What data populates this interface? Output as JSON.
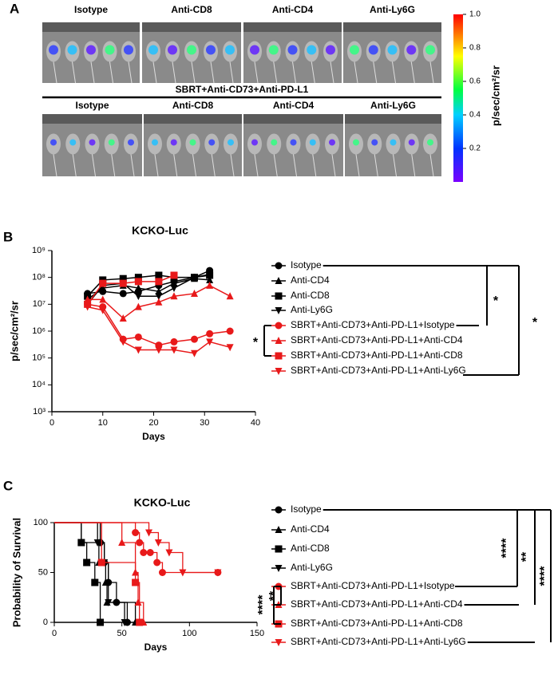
{
  "panels": [
    "A",
    "B",
    "C"
  ],
  "panel_a": {
    "top_labels": [
      "Isotype",
      "Anti-CD8",
      "Anti-CD4",
      "Anti-Ly6G"
    ],
    "treatment_label": "SBRT+Anti-CD73+Anti-PD-L1",
    "bottom_labels": [
      "Isotype",
      "Anti-CD8",
      "Anti-CD4",
      "Anti-Ly6G"
    ],
    "colorbar": {
      "label": "p/sec/cm²/sr",
      "lim": [
        0,
        1
      ],
      "ticks": [
        {
          "value": 1,
          "label": "1.0"
        },
        0.8,
        0.6,
        0.4,
        0.2
      ]
    }
  },
  "chart_data": [
    {
      "type": "line",
      "title": "KCKO-Luc",
      "x_label": "Days",
      "y_label": "p/sec/cm²/sr",
      "log_y": true,
      "x": [
        7,
        10,
        14,
        17,
        21,
        24,
        28,
        31,
        35
      ],
      "xlim": [
        0,
        40
      ],
      "xticks": [
        0,
        10,
        20,
        30,
        40
      ],
      "ylim": [
        1000,
        1000000000
      ],
      "yticks": [
        {
          "value": 1000,
          "label": "10³"
        },
        {
          "value": 10000,
          "label": "10⁴"
        },
        {
          "value": 100000,
          "label": "10⁵"
        },
        {
          "value": 1000000,
          "label": "10⁶"
        },
        {
          "value": 10000000,
          "label": "10⁷"
        },
        {
          "value": 100000000,
          "label": "10⁸"
        },
        {
          "value": 1000000000,
          "label": "10⁹"
        }
      ],
      "series": [
        {
          "name": "Isotype",
          "color": "#000000",
          "marker": "circle",
          "values": [
            25000000,
            30000000,
            25000000,
            30000000,
            50000000,
            70000000,
            100000000,
            180000000,
            null
          ]
        },
        {
          "name": "Anti-CD4",
          "color": "#000000",
          "marker": "triangle-up",
          "values": [
            15000000,
            40000000,
            50000000,
            40000000,
            30000000,
            60000000,
            90000000,
            80000000,
            null
          ]
        },
        {
          "name": "Anti-CD8",
          "color": "#000000",
          "marker": "square",
          "values": [
            20000000,
            80000000,
            90000000,
            100000000,
            120000000,
            100000000,
            100000000,
            120000000,
            null
          ]
        },
        {
          "name": "Anti-Ly6G",
          "color": "#000000",
          "marker": "triangle-down",
          "values": [
            10000000,
            50000000,
            60000000,
            20000000,
            20000000,
            40000000,
            100000000,
            130000000,
            null
          ]
        },
        {
          "name": "SBRT+Anti-CD73+Anti-PD-L1+Isotype",
          "color": "#e8191a",
          "marker": "circle",
          "values": [
            10000000,
            8000000,
            500000,
            600000,
            300000,
            400000,
            500000,
            800000,
            1000000
          ]
        },
        {
          "name": "SBRT+Anti-CD73+Anti-PD-L1+Anti-CD4",
          "color": "#e8191a",
          "marker": "triangle-up",
          "values": [
            15000000,
            15000000,
            3000000,
            8000000,
            12000000,
            20000000,
            25000000,
            50000000,
            20000000
          ]
        },
        {
          "name": "SBRT+Anti-CD73+Anti-PD-L1+Anti-CD8",
          "color": "#e8191a",
          "marker": "square",
          "values": [
            10000000,
            60000000,
            60000000,
            70000000,
            70000000,
            120000000,
            null,
            null,
            null
          ]
        },
        {
          "name": "SBRT+Anti-CD73+Anti-PD-L1+Anti-Ly6G",
          "color": "#e8191a",
          "marker": "triangle-down",
          "values": [
            8000000,
            6000000,
            400000,
            200000,
            200000,
            200000,
            150000,
            400000,
            250000
          ]
        }
      ],
      "annotations": [
        "*",
        "*",
        "*"
      ]
    },
    {
      "type": "survival",
      "title": "KCKO-Luc",
      "x_label": "Days",
      "y_label": "Probability of Survival",
      "xlim": [
        0,
        150
      ],
      "xticks": [
        0,
        50,
        100,
        150
      ],
      "ylim": [
        0,
        100
      ],
      "yticks": [
        0,
        50,
        100
      ],
      "series": [
        {
          "name": "Isotype",
          "color": "#000000",
          "marker": "circle",
          "x": [
            0,
            34,
            37,
            40,
            46,
            54
          ],
          "values": [
            100,
            80,
            60,
            40,
            20,
            0
          ]
        },
        {
          "name": "Anti-CD4",
          "color": "#000000",
          "marker": "triangle-up",
          "x": [
            0,
            20,
            33,
            38,
            39,
            60
          ],
          "values": [
            100,
            80,
            60,
            40,
            20,
            0
          ]
        },
        {
          "name": "Anti-CD8",
          "color": "#000000",
          "marker": "square",
          "x": [
            0,
            20,
            24,
            30,
            34
          ],
          "values": [
            100,
            80,
            60,
            40,
            0
          ]
        },
        {
          "name": "Anti-Ly6G",
          "color": "#000000",
          "marker": "triangle-down",
          "x": [
            0,
            32,
            37,
            40,
            52
          ],
          "values": [
            100,
            80,
            60,
            20,
            0
          ]
        },
        {
          "name": "SBRT+Anti-CD73+Anti-PD-L1+Isotype",
          "color": "#e8191a",
          "marker": "circle",
          "x": [
            0,
            60,
            63,
            66,
            71,
            76,
            80,
            121
          ],
          "values": [
            100,
            90,
            80,
            70,
            70,
            60,
            50,
            50
          ]
        },
        {
          "name": "SBRT+Anti-CD73+Anti-PD-L1+Anti-CD4",
          "color": "#e8191a",
          "marker": "triangle-up",
          "x": [
            0,
            50,
            60,
            62,
            66
          ],
          "values": [
            100,
            80,
            50,
            20,
            0
          ]
        },
        {
          "name": "SBRT+Anti-CD73+Anti-PD-L1+Anti-CD8",
          "color": "#e8191a",
          "marker": "square",
          "x": [
            0,
            35,
            60,
            63
          ],
          "values": [
            100,
            60,
            40,
            0
          ]
        },
        {
          "name": "SBRT+Anti-CD73+Anti-PD-L1+Anti-Ly6G",
          "color": "#e8191a",
          "marker": "triangle-down",
          "x": [
            0,
            70,
            77,
            85,
            95,
            121
          ],
          "values": [
            100,
            90,
            80,
            70,
            50,
            50
          ]
        }
      ],
      "annotations": [
        "****",
        "**",
        "****",
        "**",
        "****"
      ]
    }
  ]
}
